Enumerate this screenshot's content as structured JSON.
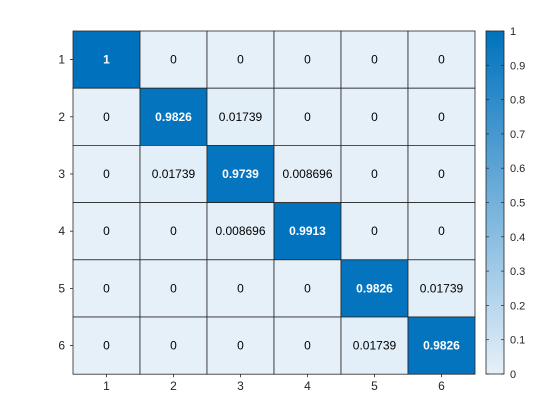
{
  "chart_data": {
    "type": "heatmap",
    "title": "",
    "xlabel": "",
    "ylabel": "",
    "x_categories": [
      "1",
      "2",
      "3",
      "4",
      "5",
      "6"
    ],
    "y_categories": [
      "1",
      "2",
      "3",
      "4",
      "5",
      "6"
    ],
    "values": [
      [
        1,
        0,
        0,
        0,
        0,
        0
      ],
      [
        0,
        0.9826,
        0.01739,
        0,
        0,
        0
      ],
      [
        0,
        0.01739,
        0.9739,
        0.008696,
        0,
        0
      ],
      [
        0,
        0,
        0.008696,
        0.9913,
        0,
        0
      ],
      [
        0,
        0,
        0,
        0,
        0.9826,
        0.01739
      ],
      [
        0,
        0,
        0,
        0,
        0.01739,
        0.9826
      ]
    ],
    "cell_labels": [
      [
        "1",
        "0",
        "0",
        "0",
        "0",
        "0"
      ],
      [
        "0",
        "0.9826",
        "0.01739",
        "0",
        "0",
        "0"
      ],
      [
        "0",
        "0.01739",
        "0.9739",
        "0.008696",
        "0",
        "0"
      ],
      [
        "0",
        "0",
        "0.008696",
        "0.9913",
        "0",
        "0"
      ],
      [
        "0",
        "0",
        "0",
        "0",
        "0.9826",
        "0.01739"
      ],
      [
        "0",
        "0",
        "0",
        "0",
        "0.01739",
        "0.9826"
      ]
    ],
    "colorbar": {
      "range": [
        0,
        1
      ],
      "ticks": [
        0,
        0.1,
        0.2,
        0.3,
        0.4,
        0.5,
        0.6,
        0.7,
        0.8,
        0.9,
        1
      ],
      "tick_labels": [
        "0",
        "0.1",
        "0.2",
        "0.3",
        "0.4",
        "0.5",
        "0.6",
        "0.7",
        "0.8",
        "0.9",
        "1"
      ],
      "color_low": "#e6f0f9",
      "color_high": "#0072bd"
    },
    "grid": true,
    "legend": "colorbar-right"
  }
}
